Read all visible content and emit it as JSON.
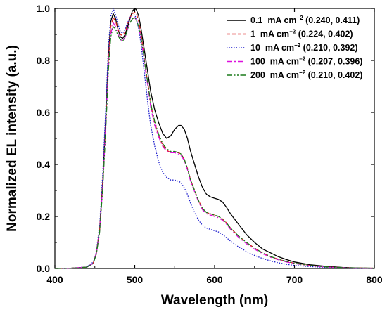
{
  "chart_data": {
    "type": "line",
    "xlabel": "Wavelength (nm)",
    "ylabel": "Normalized EL intensity (a.u.)",
    "xlim": [
      400,
      800
    ],
    "ylim": [
      0,
      1.0
    ],
    "xticks": [
      400,
      500,
      600,
      700,
      800
    ],
    "yticks": [
      0.0,
      0.2,
      0.4,
      0.6,
      0.8,
      1.0
    ],
    "x_tick_labels": [
      "400",
      "500",
      "600",
      "700",
      "800"
    ],
    "y_tick_labels": [
      "0.0",
      "0.2",
      "0.4",
      "0.6",
      "0.8",
      "1.0"
    ],
    "grid": false,
    "legend_position": "top-right",
    "legend_unit": "mA cm",
    "legend_unit_sup": "−2",
    "series": [
      {
        "name": "0.1 mA cm−2 (0.240, 0.411)",
        "density": "0.1",
        "cie": "(0.240, 0.411)",
        "color": "#000000",
        "dash": "solid",
        "x": [
          400,
          420,
          440,
          448,
          452,
          456,
          460,
          464,
          467,
          470,
          473,
          476,
          479,
          482,
          485,
          488,
          491,
          494,
          497,
          500,
          502,
          505,
          508,
          511,
          514,
          517,
          520,
          525,
          530,
          535,
          540,
          545,
          550,
          555,
          558,
          562,
          566,
          570,
          575,
          580,
          585,
          590,
          595,
          600,
          605,
          610,
          615,
          620,
          630,
          640,
          650,
          660,
          670,
          680,
          690,
          700,
          720,
          740,
          760,
          780,
          800
        ],
        "y": [
          0.0,
          0.001,
          0.005,
          0.02,
          0.06,
          0.15,
          0.34,
          0.6,
          0.82,
          0.95,
          0.98,
          0.96,
          0.92,
          0.89,
          0.885,
          0.9,
          0.93,
          0.96,
          0.99,
          1.0,
          0.995,
          0.97,
          0.92,
          0.86,
          0.8,
          0.74,
          0.68,
          0.61,
          0.56,
          0.52,
          0.5,
          0.51,
          0.535,
          0.55,
          0.55,
          0.535,
          0.5,
          0.45,
          0.4,
          0.35,
          0.31,
          0.285,
          0.275,
          0.27,
          0.265,
          0.255,
          0.235,
          0.21,
          0.17,
          0.13,
          0.1,
          0.075,
          0.06,
          0.045,
          0.034,
          0.025,
          0.014,
          0.008,
          0.004,
          0.002,
          0.001
        ]
      },
      {
        "name": "1 mA cm−2 (0.224, 0.402)",
        "density": "1",
        "cie": "(0.224, 0.402)",
        "color": "#dd2020",
        "dash": "dashed",
        "x": [
          400,
          420,
          440,
          448,
          452,
          456,
          460,
          464,
          467,
          470,
          473,
          476,
          479,
          482,
          485,
          488,
          491,
          494,
          497,
          500,
          502,
          505,
          508,
          511,
          514,
          517,
          520,
          525,
          530,
          535,
          540,
          545,
          550,
          555,
          558,
          562,
          566,
          570,
          575,
          580,
          585,
          590,
          595,
          600,
          605,
          610,
          615,
          620,
          630,
          640,
          650,
          660,
          670,
          680,
          690,
          700,
          720,
          740,
          760,
          780,
          800
        ],
        "y": [
          0.0,
          0.001,
          0.005,
          0.02,
          0.06,
          0.15,
          0.33,
          0.58,
          0.8,
          0.93,
          0.965,
          0.95,
          0.92,
          0.9,
          0.895,
          0.91,
          0.94,
          0.965,
          0.98,
          0.985,
          0.98,
          0.95,
          0.9,
          0.83,
          0.76,
          0.7,
          0.63,
          0.56,
          0.51,
          0.475,
          0.455,
          0.445,
          0.445,
          0.445,
          0.44,
          0.42,
          0.385,
          0.34,
          0.3,
          0.26,
          0.23,
          0.215,
          0.21,
          0.205,
          0.2,
          0.19,
          0.175,
          0.155,
          0.125,
          0.1,
          0.078,
          0.06,
          0.046,
          0.035,
          0.027,
          0.02,
          0.011,
          0.006,
          0.003,
          0.002,
          0.001
        ]
      },
      {
        "name": "10 mA cm−2 (0.210, 0.392)",
        "density": "10",
        "cie": "(0.210, 0.392)",
        "color": "#1a1acc",
        "dash": "dotted",
        "x": [
          400,
          420,
          440,
          448,
          452,
          456,
          460,
          464,
          467,
          470,
          473,
          476,
          479,
          482,
          485,
          488,
          491,
          494,
          497,
          500,
          502,
          505,
          508,
          511,
          514,
          517,
          520,
          525,
          530,
          535,
          540,
          545,
          550,
          555,
          558,
          562,
          566,
          570,
          575,
          580,
          585,
          590,
          595,
          600,
          605,
          610,
          615,
          620,
          630,
          640,
          650,
          660,
          670,
          680,
          690,
          700,
          720,
          740,
          760,
          780,
          800
        ],
        "y": [
          0.0,
          0.001,
          0.006,
          0.025,
          0.07,
          0.17,
          0.37,
          0.63,
          0.85,
          0.97,
          1.0,
          0.975,
          0.94,
          0.91,
          0.905,
          0.92,
          0.945,
          0.965,
          0.975,
          0.975,
          0.96,
          0.92,
          0.86,
          0.78,
          0.7,
          0.62,
          0.55,
          0.47,
          0.41,
          0.37,
          0.35,
          0.34,
          0.34,
          0.335,
          0.33,
          0.31,
          0.285,
          0.25,
          0.215,
          0.185,
          0.165,
          0.155,
          0.15,
          0.145,
          0.14,
          0.13,
          0.118,
          0.105,
          0.083,
          0.065,
          0.05,
          0.038,
          0.029,
          0.022,
          0.016,
          0.012,
          0.007,
          0.004,
          0.002,
          0.001,
          0.001
        ]
      },
      {
        "name": "100 mA cm−2 (0.207, 0.396)",
        "density": "100",
        "cie": "(0.207, 0.396)",
        "color": "#dd10dd",
        "dash": "dashdot",
        "x": [
          400,
          420,
          440,
          448,
          452,
          456,
          460,
          464,
          467,
          470,
          473,
          476,
          479,
          482,
          485,
          488,
          491,
          494,
          497,
          500,
          502,
          505,
          508,
          511,
          514,
          517,
          520,
          525,
          530,
          535,
          540,
          545,
          550,
          555,
          558,
          562,
          566,
          570,
          575,
          580,
          585,
          590,
          595,
          600,
          605,
          610,
          615,
          620,
          630,
          640,
          650,
          660,
          670,
          680,
          690,
          700,
          720,
          740,
          760,
          780,
          800
        ],
        "y": [
          0.0,
          0.001,
          0.005,
          0.02,
          0.058,
          0.145,
          0.32,
          0.56,
          0.77,
          0.9,
          0.945,
          0.93,
          0.9,
          0.88,
          0.875,
          0.89,
          0.92,
          0.945,
          0.96,
          0.965,
          0.955,
          0.93,
          0.88,
          0.82,
          0.75,
          0.69,
          0.62,
          0.55,
          0.505,
          0.47,
          0.45,
          0.445,
          0.445,
          0.44,
          0.435,
          0.415,
          0.38,
          0.335,
          0.295,
          0.255,
          0.225,
          0.21,
          0.205,
          0.2,
          0.195,
          0.185,
          0.17,
          0.15,
          0.12,
          0.095,
          0.074,
          0.057,
          0.043,
          0.033,
          0.025,
          0.019,
          0.01,
          0.005,
          0.003,
          0.001,
          0.001
        ]
      },
      {
        "name": "200 mA cm−2 (0.210, 0.402)",
        "density": "200",
        "cie": "(0.210, 0.402)",
        "color": "#1a7a1a",
        "dash": "dashdotdot",
        "x": [
          400,
          420,
          440,
          448,
          452,
          456,
          460,
          464,
          467,
          470,
          473,
          476,
          479,
          482,
          485,
          488,
          491,
          494,
          497,
          500,
          502,
          505,
          508,
          511,
          514,
          517,
          520,
          525,
          530,
          535,
          540,
          545,
          550,
          555,
          558,
          562,
          566,
          570,
          575,
          580,
          585,
          590,
          595,
          600,
          605,
          610,
          615,
          620,
          630,
          640,
          650,
          660,
          670,
          680,
          690,
          700,
          720,
          740,
          760,
          780,
          800
        ],
        "y": [
          0.0,
          0.001,
          0.005,
          0.019,
          0.055,
          0.14,
          0.31,
          0.55,
          0.76,
          0.89,
          0.93,
          0.92,
          0.895,
          0.88,
          0.875,
          0.89,
          0.92,
          0.945,
          0.96,
          0.965,
          0.955,
          0.93,
          0.885,
          0.825,
          0.76,
          0.7,
          0.635,
          0.565,
          0.515,
          0.48,
          0.46,
          0.45,
          0.45,
          0.445,
          0.44,
          0.42,
          0.385,
          0.34,
          0.3,
          0.26,
          0.23,
          0.215,
          0.21,
          0.205,
          0.2,
          0.19,
          0.175,
          0.155,
          0.125,
          0.1,
          0.078,
          0.06,
          0.046,
          0.035,
          0.027,
          0.02,
          0.011,
          0.006,
          0.003,
          0.002,
          0.001
        ]
      }
    ]
  }
}
